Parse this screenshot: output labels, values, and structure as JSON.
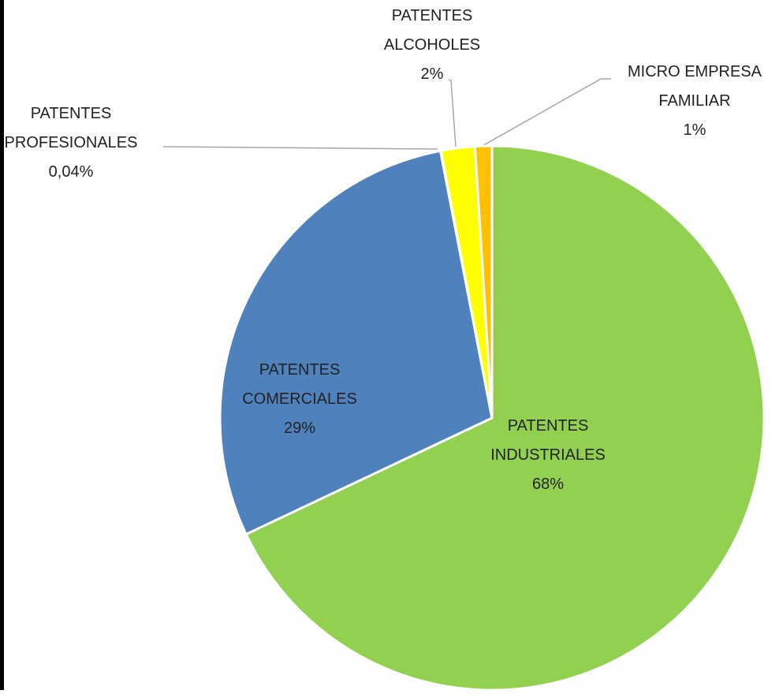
{
  "chart_data": {
    "type": "pie",
    "categories": [
      "PATENTES INDUSTRIALES",
      "PATENTES COMERCIALES",
      "PATENTES PROFESIONALES",
      "PATENTES ALCOHOLES",
      "MICRO EMPRESA FAMILIAR"
    ],
    "values": [
      68,
      29,
      0.04,
      2,
      1
    ],
    "value_labels": [
      "68%",
      "29%",
      "0,04%",
      "2%",
      "1%"
    ],
    "colors": [
      "#92d050",
      "#4f81bd",
      "#c0504d",
      "#ffff00",
      "#ffc000"
    ]
  }
}
